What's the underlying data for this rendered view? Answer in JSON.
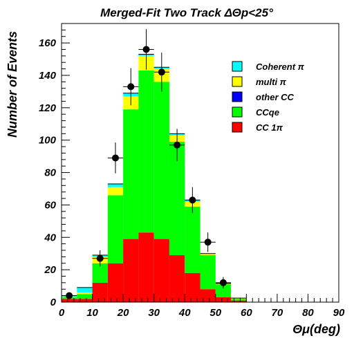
{
  "chart_data": {
    "type": "bar",
    "stacked": true,
    "title": "Merged-Fit Two Track ΔΘp<25°",
    "xlabel": "Θμ(deg)",
    "ylabel": "Number of Events",
    "xlim": [
      0,
      90
    ],
    "ylim": [
      0,
      172
    ],
    "bin_width": 5,
    "bin_starts": [
      0,
      5,
      10,
      15,
      20,
      25,
      30,
      35,
      40,
      45,
      50,
      55,
      60,
      65,
      70,
      75,
      80,
      85
    ],
    "x_ticks": [
      "0",
      "10",
      "20",
      "30",
      "40",
      "50",
      "60",
      "70",
      "80",
      "90"
    ],
    "y_ticks": [
      "0",
      "20",
      "40",
      "60",
      "80",
      "100",
      "120",
      "140",
      "160"
    ],
    "series": [
      {
        "name": "CC 1π",
        "color": "#ff0000",
        "values": [
          2,
          2,
          12,
          24,
          39,
          43,
          39,
          29,
          18,
          8,
          3,
          1,
          0,
          0,
          0,
          0,
          0,
          0
        ]
      },
      {
        "name": "CCqe",
        "color": "#00ff00",
        "values": [
          1,
          3,
          12,
          42,
          80,
          100,
          97,
          70,
          41,
          21,
          8,
          1,
          0,
          0,
          0,
          0,
          0,
          0
        ]
      },
      {
        "name": "other CC",
        "color": "#0000ff",
        "values": [
          0,
          0,
          0,
          0,
          0,
          0,
          0,
          0,
          0,
          0,
          0,
          0,
          0,
          0,
          0,
          0,
          0,
          0
        ]
      },
      {
        "name": "multi π",
        "color": "#ffff00",
        "values": [
          0.5,
          1,
          4,
          5,
          8,
          9,
          8,
          4,
          3,
          1,
          0.5,
          0.3,
          0,
          0,
          0,
          0,
          0,
          0
        ]
      },
      {
        "name": "Coherent π",
        "color": "#00ffff",
        "values": [
          0.5,
          3,
          1,
          2,
          2,
          1,
          1,
          1,
          1,
          0,
          0,
          0.2,
          0,
          0,
          0,
          0,
          0,
          0
        ]
      }
    ],
    "data_points": [
      {
        "x": 2.5,
        "y": 4,
        "err": 2
      },
      {
        "x": 12.5,
        "y": 27,
        "err": 5
      },
      {
        "x": 17.5,
        "y": 89,
        "err": 9.5
      },
      {
        "x": 22.5,
        "y": 133,
        "err": 11.5
      },
      {
        "x": 27.5,
        "y": 156,
        "err": 12.5
      },
      {
        "x": 32.5,
        "y": 142,
        "err": 12
      },
      {
        "x": 37.5,
        "y": 97,
        "err": 10
      },
      {
        "x": 42.5,
        "y": 63,
        "err": 8
      },
      {
        "x": 47.5,
        "y": 37,
        "err": 6
      },
      {
        "x": 52.5,
        "y": 12,
        "err": 3.5
      }
    ],
    "legend": {
      "position": "right",
      "entries": [
        {
          "label": "Coherent π",
          "color": "#00ffff"
        },
        {
          "label": "multi π",
          "color": "#ffff00"
        },
        {
          "label": "other CC",
          "color": "#0000ff"
        },
        {
          "label": "CCqe",
          "color": "#00ff00"
        },
        {
          "label": "CC 1π",
          "color": "#ff0000"
        }
      ]
    }
  }
}
